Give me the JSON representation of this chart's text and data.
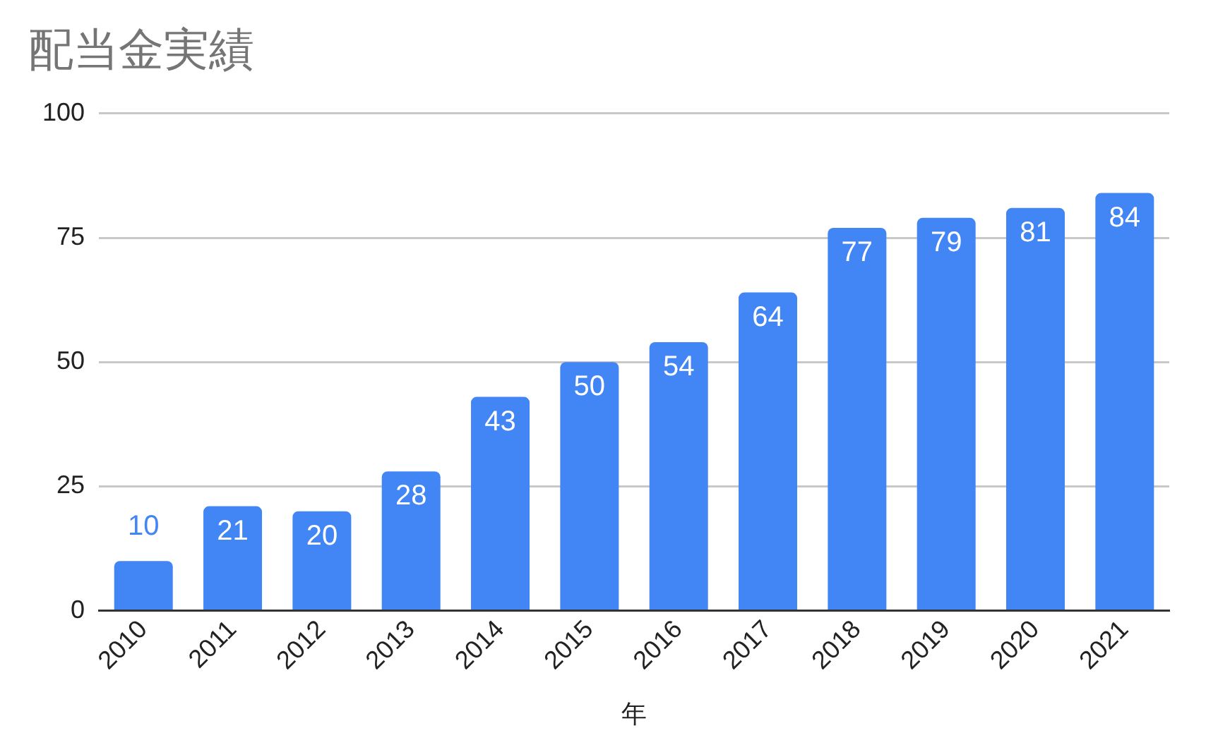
{
  "chart_data": {
    "type": "bar",
    "title": "配当金実績",
    "xlabel": "年",
    "categories": [
      "2010",
      "2011",
      "2012",
      "2013",
      "2014",
      "2015",
      "2016",
      "2017",
      "2018",
      "2019",
      "2020",
      "2021"
    ],
    "values": [
      10,
      21,
      20,
      28,
      43,
      50,
      54,
      64,
      77,
      79,
      81,
      84
    ],
    "color": "#4285f4",
    "ylim": [
      0,
      100
    ],
    "yticks": [
      0,
      25,
      50,
      75,
      100
    ],
    "grid": "y",
    "data_labels": true,
    "legend": false
  }
}
